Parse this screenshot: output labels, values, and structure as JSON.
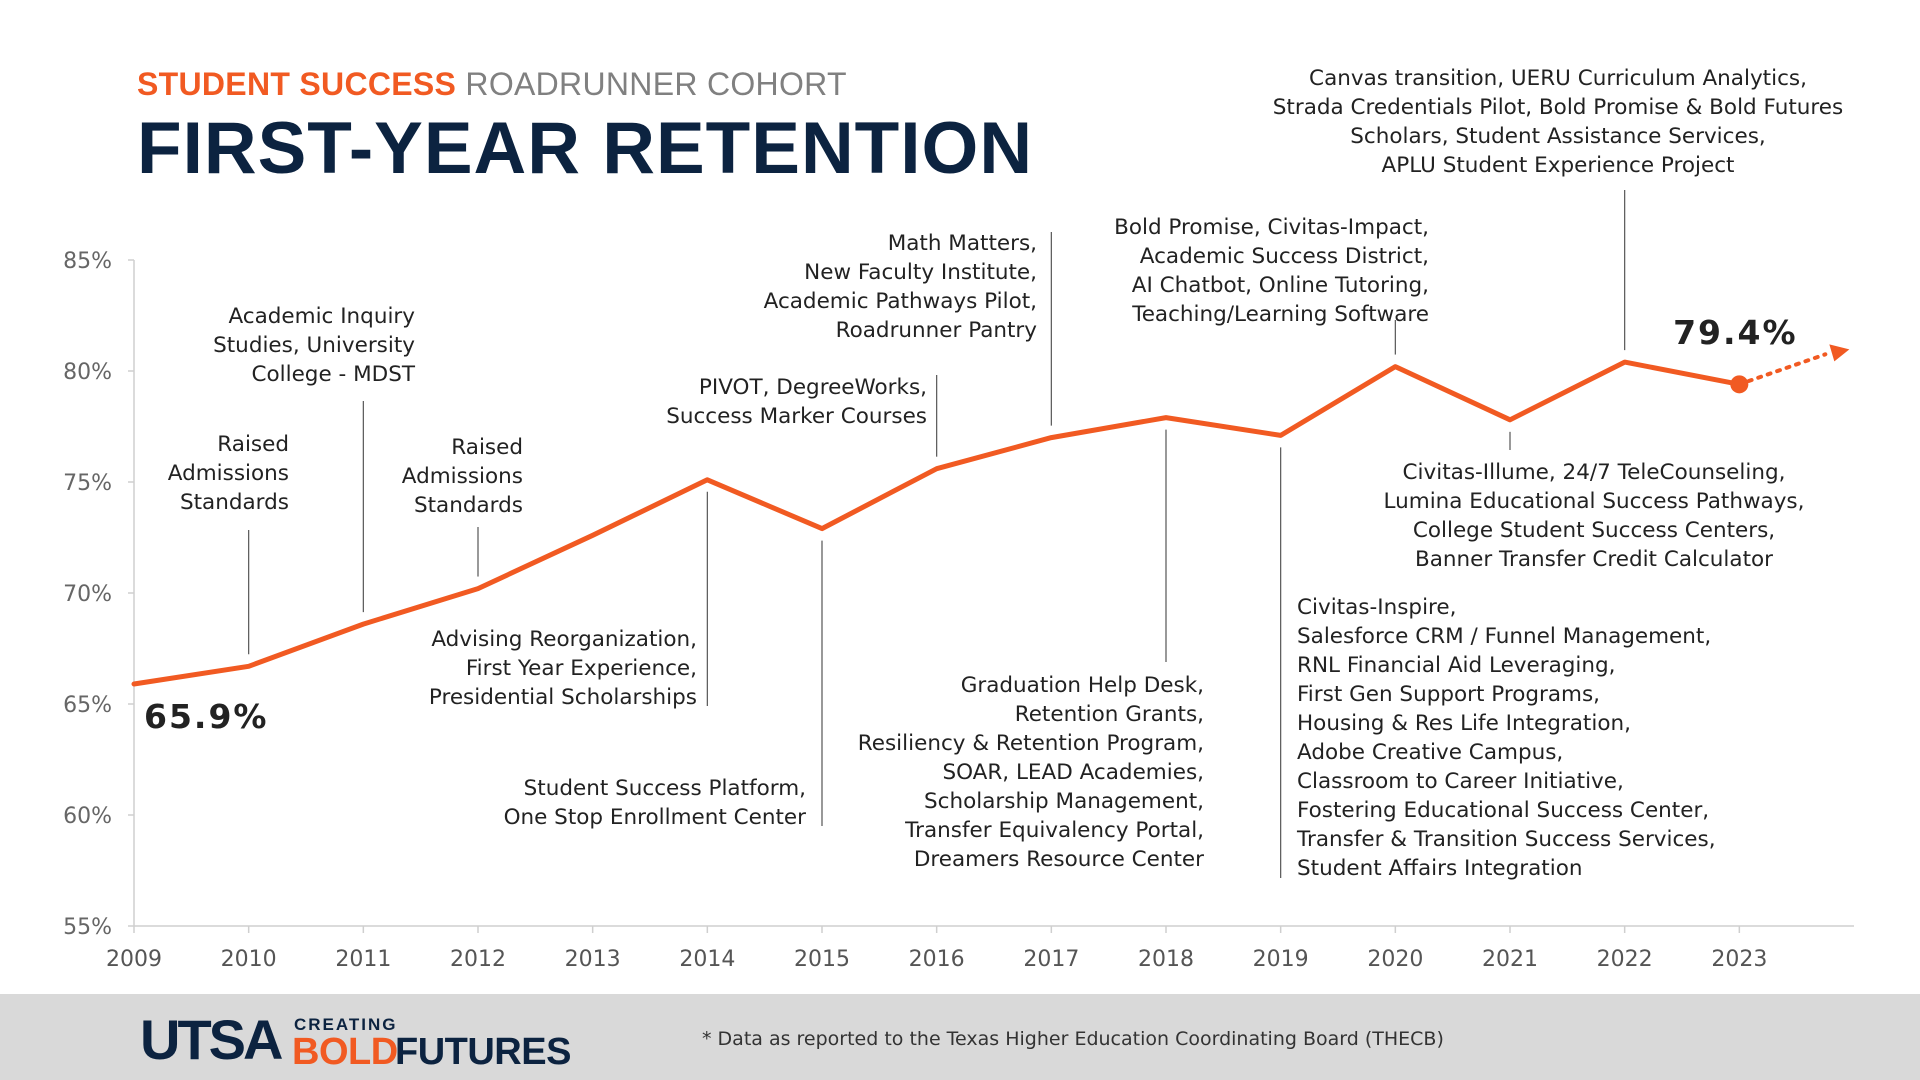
{
  "header": {
    "eyebrow_accent": "STUDENT SUCCESS",
    "eyebrow_rest": "ROADRUNNER COHORT",
    "title": "FIRST-YEAR RETENTION"
  },
  "chart_data": {
    "type": "line",
    "title": "FIRST-YEAR RETENTION",
    "x": [
      2009,
      2010,
      2011,
      2012,
      2013,
      2014,
      2015,
      2016,
      2017,
      2018,
      2019,
      2020,
      2021,
      2022,
      2023
    ],
    "series": [
      {
        "values": [
          65.9,
          66.7,
          68.6,
          70.2,
          72.6,
          75.1,
          72.9,
          75.6,
          77.0,
          77.9,
          77.1,
          80.2,
          77.8,
          80.4,
          79.4
        ],
        "color": "#f15a22"
      }
    ],
    "x_ticks": [
      "2009",
      "2010",
      "2011",
      "2012",
      "2013",
      "2014",
      "2015",
      "2016",
      "2017",
      "2018",
      "2019",
      "2020",
      "2021",
      "2022",
      "2023"
    ],
    "y_ticks": [
      "55%",
      "60%",
      "65%",
      "70%",
      "75%",
      "80%",
      "85%"
    ],
    "y_tick_values": [
      55,
      60,
      65,
      70,
      75,
      80,
      85
    ],
    "ylim": [
      55,
      85
    ],
    "xlim": [
      2009,
      2024
    ],
    "grid": false,
    "start_label": "65.9%",
    "end_label": "79.4%",
    "trend_arrow": "dotted continuation after 2023",
    "annotations": [
      {
        "year": 2010,
        "lines": [
          "Raised",
          "Admissions",
          "Standards"
        ]
      },
      {
        "year": 2011,
        "lines": [
          "Academic Inquiry",
          "Studies, University",
          "College - MDST"
        ]
      },
      {
        "year": 2012,
        "lines": [
          "Raised",
          "Admissions",
          "Standards"
        ]
      },
      {
        "year": 2014,
        "lines": [
          "Advising Reorganization,",
          "First Year Experience,",
          "Presidential Scholarships"
        ]
      },
      {
        "year": 2015,
        "lines": [
          "Student Success Platform,",
          "One Stop Enrollment Center"
        ]
      },
      {
        "year": 2016,
        "lines": [
          "PIVOT, DegreeWorks,",
          "Success Marker Courses"
        ]
      },
      {
        "year": 2017,
        "lines": [
          "Math Matters,",
          "New Faculty Institute,",
          "Academic Pathways Pilot,",
          "Roadrunner Pantry"
        ]
      },
      {
        "year": 2018,
        "lines": [
          "Graduation Help Desk,",
          "Retention Grants,",
          "Resiliency & Retention Program,",
          "SOAR, LEAD Academies,",
          "Scholarship Management,",
          "Transfer Equivalency Portal,",
          "Dreamers Resource Center"
        ]
      },
      {
        "year": 2019,
        "lines": [
          "Civitas-Inspire,",
          "Salesforce CRM / Funnel Management,",
          "RNL Financial Aid Leveraging,",
          "First Gen Support Programs,",
          "Housing & Res Life Integration,",
          "Adobe Creative Campus,",
          "Classroom to Career Initiative,",
          "Fostering Educational Success Center,",
          "Transfer & Transition Success Services,",
          "Student Affairs Integration"
        ]
      },
      {
        "year": 2020,
        "lines": [
          "Bold Promise, Civitas-Impact,",
          "Academic Success District,",
          "AI Chatbot, Online Tutoring,",
          "Teaching/Learning Software"
        ]
      },
      {
        "year": 2021,
        "lines": [
          "Civitas-Illume, 24/7 TeleCounseling,",
          "Lumina Educational Success Pathways,",
          "College Student Success Centers,",
          "Banner Transfer Credit Calculator"
        ]
      },
      {
        "year": 2022,
        "lines": [
          "Canvas transition, UERU Curriculum Analytics,",
          "Strada Credentials Pilot, Bold Promise & Bold Futures",
          "Scholars, Student Assistance Services,",
          "APLU Student Experience Project"
        ]
      }
    ]
  },
  "footer": {
    "logo_utsa": "UTSA",
    "logo_creating": "CREATING",
    "logo_bold": "BOLD",
    "logo_futures": "FUTURES",
    "note": "* Data as reported to the Texas Higher Education Coordinating Board (THECB)"
  },
  "colors": {
    "accent": "#f15a22",
    "navy": "#0c2340",
    "gray_text": "#808080",
    "footer_bg": "#d9d9d9"
  }
}
